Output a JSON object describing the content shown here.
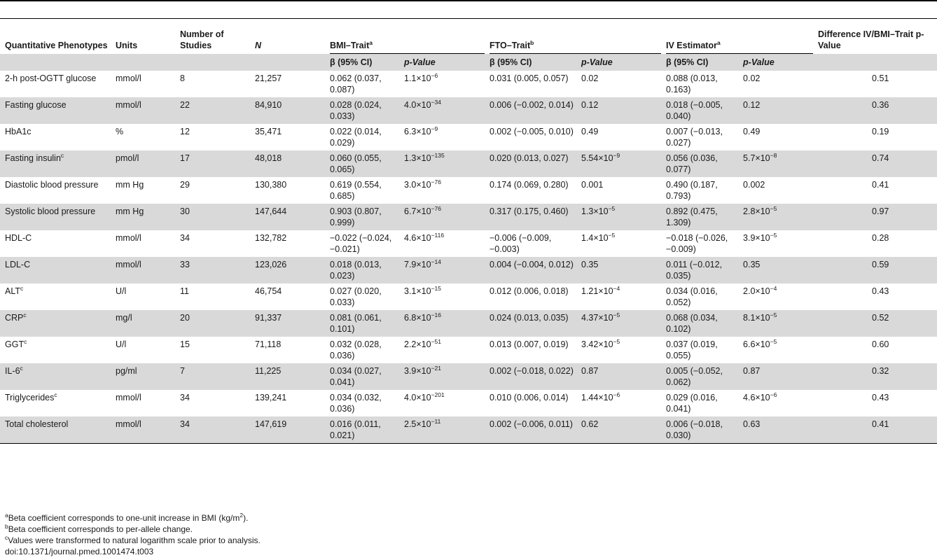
{
  "header": {
    "phenotype": "Quantitative Phenotypes",
    "units": "Units",
    "studies": "Number of Studies",
    "n": "N",
    "bmi": "BMI–Trait",
    "bmi_sup": "a",
    "fto": "FTO–Trait",
    "fto_sup": "b",
    "iv": "IV Estimator",
    "iv_sup": "a",
    "diff": "Difference IV/BMI–Trait p-Value",
    "beta": "β (95% CI)",
    "pvalue": "p-Value"
  },
  "rows": [
    {
      "name": "2-h post-OGTT glucose",
      "sup": "",
      "units": "mmol/l",
      "studies": "8",
      "n": "21,257",
      "bmi_beta": "0.062 (0.037, 0.087)",
      "bmi_p": "1.1×10",
      "bmi_p_exp": "−6",
      "fto_beta": "0.031 (0.005, 0.057)",
      "fto_p": "0.02",
      "fto_p_exp": "",
      "iv_beta": "0.088 (0.013, 0.163)",
      "iv_p": "0.02",
      "iv_p_exp": "",
      "diff": "0.51"
    },
    {
      "name": "Fasting glucose",
      "sup": "",
      "units": "mmol/l",
      "studies": "22",
      "n": "84,910",
      "bmi_beta": "0.028 (0.024, 0.033)",
      "bmi_p": "4.0×10",
      "bmi_p_exp": "−34",
      "fto_beta": "0.006 (−0.002, 0.014)",
      "fto_p": "0.12",
      "fto_p_exp": "",
      "iv_beta": "0.018 (−0.005, 0.040)",
      "iv_p": "0.12",
      "iv_p_exp": "",
      "diff": "0.36"
    },
    {
      "name": "HbA1c",
      "sup": "",
      "units": "%",
      "studies": "12",
      "n": "35,471",
      "bmi_beta": "0.022 (0.014, 0.029)",
      "bmi_p": "6.3×10",
      "bmi_p_exp": "−9",
      "fto_beta": "0.002 (−0.005, 0.010)",
      "fto_p": "0.49",
      "fto_p_exp": "",
      "iv_beta": "0.007 (−0.013, 0.027)",
      "iv_p": "0.49",
      "iv_p_exp": "",
      "diff": "0.19"
    },
    {
      "name": "Fasting insulin",
      "sup": "c",
      "units": "pmol/l",
      "studies": "17",
      "n": "48,018",
      "bmi_beta": "0.060 (0.055, 0.065)",
      "bmi_p": "1.3×10",
      "bmi_p_exp": "−135",
      "fto_beta": "0.020 (0.013, 0.027)",
      "fto_p": "5.54×10",
      "fto_p_exp": "−9",
      "iv_beta": "0.056 (0.036, 0.077)",
      "iv_p": "5.7×10",
      "iv_p_exp": "−8",
      "diff": "0.74"
    },
    {
      "name": "Diastolic blood pressure",
      "sup": "",
      "units": "mm Hg",
      "studies": "29",
      "n": "130,380",
      "bmi_beta": "0.619 (0.554, 0.685)",
      "bmi_p": "3.0×10",
      "bmi_p_exp": "−76",
      "fto_beta": "0.174 (0.069, 0.280)",
      "fto_p": "0.001",
      "fto_p_exp": "",
      "iv_beta": "0.490 (0.187, 0.793)",
      "iv_p": "0.002",
      "iv_p_exp": "",
      "diff": "0.41"
    },
    {
      "name": "Systolic blood pressure",
      "sup": "",
      "units": "mm Hg",
      "studies": "30",
      "n": "147,644",
      "bmi_beta": "0.903 (0.807, 0.999)",
      "bmi_p": "6.7×10",
      "bmi_p_exp": "−76",
      "fto_beta": "0.317 (0.175, 0.460)",
      "fto_p": "1.3×10",
      "fto_p_exp": "−5",
      "iv_beta": "0.892 (0.475, 1.309)",
      "iv_p": "2.8×10",
      "iv_p_exp": "−5",
      "diff": "0.97"
    },
    {
      "name": "HDL-C",
      "sup": "",
      "units": "mmol/l",
      "studies": "34",
      "n": "132,782",
      "bmi_beta": "−0.022 (−0.024, −0.021)",
      "bmi_p": "4.6×10",
      "bmi_p_exp": "−116",
      "fto_beta": "−0.006 (−0.009, −0.003)",
      "fto_p": "1.4×10",
      "fto_p_exp": "−5",
      "iv_beta": "−0.018 (−0.026, −0.009)",
      "iv_p": "3.9×10",
      "iv_p_exp": "−5",
      "diff": "0.28"
    },
    {
      "name": "LDL-C",
      "sup": "",
      "units": "mmol/l",
      "studies": "33",
      "n": "123,026",
      "bmi_beta": "0.018 (0.013, 0.023)",
      "bmi_p": "7.9×10",
      "bmi_p_exp": "−14",
      "fto_beta": "0.004 (−0.004, 0.012)",
      "fto_p": "0.35",
      "fto_p_exp": "",
      "iv_beta": "0.011 (−0.012, 0.035)",
      "iv_p": "0.35",
      "iv_p_exp": "",
      "diff": "0.59"
    },
    {
      "name": "ALT",
      "sup": "c",
      "units": "U/l",
      "studies": "11",
      "n": "46,754",
      "bmi_beta": "0.027 (0.020, 0.033)",
      "bmi_p": "3.1×10",
      "bmi_p_exp": "−15",
      "fto_beta": "0.012 (0.006, 0.018)",
      "fto_p": "1.21×10",
      "fto_p_exp": "−4",
      "iv_beta": "0.034 (0.016, 0.052)",
      "iv_p": "2.0×10",
      "iv_p_exp": "−4",
      "diff": "0.43"
    },
    {
      "name": "CRP",
      "sup": "c",
      "units": "mg/l",
      "studies": "20",
      "n": "91,337",
      "bmi_beta": "0.081 (0.061, 0.101)",
      "bmi_p": "6.8×10",
      "bmi_p_exp": "−16",
      "fto_beta": "0.024 (0.013, 0.035)",
      "fto_p": "4.37×10",
      "fto_p_exp": "−5",
      "iv_beta": "0.068 (0.034, 0.102)",
      "iv_p": "8.1×10",
      "iv_p_exp": "−5",
      "diff": "0.52"
    },
    {
      "name": "GGT",
      "sup": "c",
      "units": "U/l",
      "studies": "15",
      "n": "71,118",
      "bmi_beta": "0.032 (0.028, 0.036)",
      "bmi_p": "2.2×10",
      "bmi_p_exp": "−51",
      "fto_beta": "0.013 (0.007, 0.019)",
      "fto_p": "3.42×10",
      "fto_p_exp": "−5",
      "iv_beta": "0.037 (0.019, 0.055)",
      "iv_p": "6.6×10",
      "iv_p_exp": "−5",
      "diff": "0.60"
    },
    {
      "name": "IL-6",
      "sup": "c",
      "units": "pg/ml",
      "studies": "7",
      "n": "11,225",
      "bmi_beta": "0.034 (0.027, 0.041)",
      "bmi_p": "3.9×10",
      "bmi_p_exp": "−21",
      "fto_beta": "0.002 (−0.018, 0.022)",
      "fto_p": "0.87",
      "fto_p_exp": "",
      "iv_beta": "0.005 (−0.052, 0.062)",
      "iv_p": "0.87",
      "iv_p_exp": "",
      "diff": "0.32"
    },
    {
      "name": "Triglycerides",
      "sup": "c",
      "units": "mmol/l",
      "studies": "34",
      "n": "139,241",
      "bmi_beta": "0.034 (0.032, 0.036)",
      "bmi_p": "4.0×10",
      "bmi_p_exp": "−201",
      "fto_beta": "0.010 (0.006, 0.014)",
      "fto_p": "1.44×10",
      "fto_p_exp": "−6",
      "iv_beta": "0.029 (0.016, 0.041)",
      "iv_p": "4.6×10",
      "iv_p_exp": "−6",
      "diff": "0.43"
    },
    {
      "name": "Total cholesterol",
      "sup": "",
      "units": "mmol/l",
      "studies": "34",
      "n": "147,619",
      "bmi_beta": "0.016 (0.011, 0.021)",
      "bmi_p": "2.5×10",
      "bmi_p_exp": "−11",
      "fto_beta": "0.002 (−0.006, 0.011)",
      "fto_p": "0.62",
      "fto_p_exp": "",
      "iv_beta": "0.006 (−0.018, 0.030)",
      "iv_p": "0.63",
      "iv_p_exp": "",
      "diff": "0.41"
    }
  ],
  "footnotes": {
    "a_mark": "a",
    "a_text": "Beta coefficient corresponds to one-unit increase in BMI (kg/m",
    "a_sup": "2",
    "a_end": ").",
    "b_mark": "b",
    "b_text": "Beta coefficient corresponds to per-allele change.",
    "c_mark": "c",
    "c_text": "Values were transformed to natural logarithm scale prior to analysis.",
    "doi": "doi:10.1371/journal.pmed.1001474.t003"
  }
}
